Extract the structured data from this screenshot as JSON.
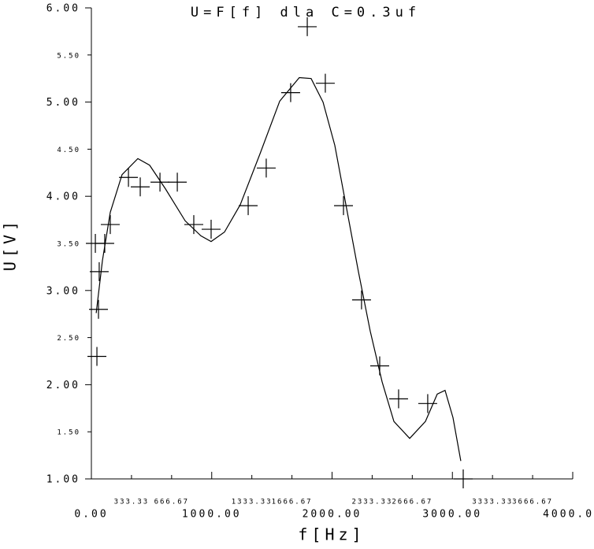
{
  "chart_data": {
    "type": "scatter",
    "title": "U=F[f] dla C=0.3uf",
    "xlabel": "f[Hz]",
    "ylabel": "U[V]",
    "xlim": [
      0,
      4000
    ],
    "ylim": [
      1,
      6
    ],
    "xticks": [
      {
        "value": 0,
        "label": "0.00"
      },
      {
        "value": 333.33,
        "label": "333.33"
      },
      {
        "value": 666.67,
        "label": "666.67"
      },
      {
        "value": 1000,
        "label": "1000.00"
      },
      {
        "value": 1333.33,
        "label": "1333.33"
      },
      {
        "value": 1666.67,
        "label": "1666.67"
      },
      {
        "value": 2000,
        "label": "2000.00"
      },
      {
        "value": 2333.33,
        "label": "2333.33"
      },
      {
        "value": 2666.67,
        "label": "2666.67"
      },
      {
        "value": 3000,
        "label": "3000.00"
      },
      {
        "value": 3333.33,
        "label": "3333.33"
      },
      {
        "value": 3666.67,
        "label": "3666.67"
      },
      {
        "value": 4000,
        "label": "4000.00"
      }
    ],
    "yticks": [
      {
        "value": 1,
        "label": "1.00"
      },
      {
        "value": 1.5,
        "label": "1.50"
      },
      {
        "value": 2,
        "label": "2.00"
      },
      {
        "value": 2.5,
        "label": "2.50"
      },
      {
        "value": 3,
        "label": "3.00"
      },
      {
        "value": 3.5,
        "label": "3.50"
      },
      {
        "value": 4,
        "label": "4.00"
      },
      {
        "value": 4.5,
        "label": "4.50"
      },
      {
        "value": 5,
        "label": "5.00"
      },
      {
        "value": 5.5,
        "label": "5.50"
      },
      {
        "value": 6,
        "label": "6.00"
      }
    ],
    "series": [
      {
        "type": "scatter",
        "color": "#000000",
        "x": [
          46,
          59,
          65,
          33,
          111,
          157,
          308,
          406,
          570,
          714,
          851,
          995,
          1303,
          1453,
          1656,
          1794,
          1944,
          2095,
          2245,
          2396,
          2553,
          2795,
          3090
        ],
        "values": [
          2.3,
          2.8,
          3.2,
          3.5,
          3.5,
          3.7,
          4.2,
          4.1,
          4.15,
          4.15,
          3.7,
          3.65,
          3.9,
          4.3,
          5.1,
          5.8,
          5.2,
          3.9,
          2.9,
          2.2,
          1.85,
          1.8,
          1.0
        ]
      },
      {
        "type": "line",
        "color": "#000000",
        "x": [
          40,
          92,
          157,
          255,
          386,
          484,
          615,
          779,
          910,
          995,
          1106,
          1237,
          1401,
          1565,
          1728,
          1826,
          1925,
          2023,
          2121,
          2219,
          2317,
          2416,
          2514,
          2645,
          2776,
          2874,
          2939,
          3005,
          3070
        ],
        "values": [
          2.76,
          3.32,
          3.83,
          4.23,
          4.4,
          4.33,
          4.08,
          3.74,
          3.58,
          3.52,
          3.62,
          3.91,
          4.45,
          5.01,
          5.26,
          5.25,
          5.0,
          4.54,
          3.87,
          3.2,
          2.57,
          2.03,
          1.61,
          1.43,
          1.61,
          1.9,
          1.94,
          1.65,
          1.19
        ]
      }
    ]
  }
}
